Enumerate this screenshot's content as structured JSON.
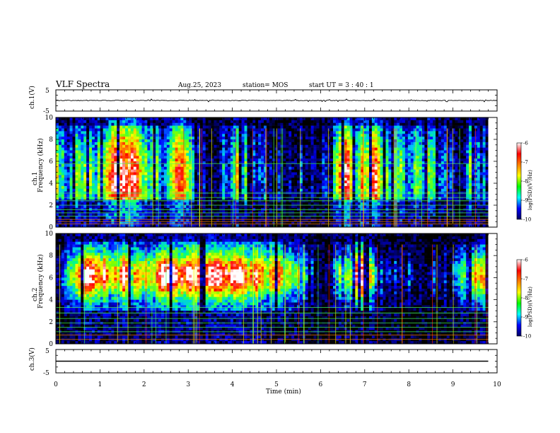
{
  "header": {
    "title": "VLF Spectra",
    "date": "Aug.25, 2023",
    "station": "station= MOS",
    "start": "start  UT =   3 : 40 : 1"
  },
  "chart_data": [
    {
      "type": "line",
      "panel": "ch1-waveform",
      "ylabel": "ch.1(V)",
      "ylim": [
        -5,
        5
      ],
      "y_ticks": [
        "5",
        "-5"
      ],
      "x_range": [
        0,
        10
      ],
      "level": 0,
      "description_of_series": "near-zero waveform with small spikes"
    },
    {
      "type": "heatmap",
      "panel": "ch1-spectrogram",
      "ylabel": "ch.1\nFrequency (kHz)",
      "ylabel_line1": "ch.1",
      "ylabel_line2": "Frequency (kHz)",
      "ylim": [
        0,
        10
      ],
      "y_ticks": [
        "0",
        "2",
        "4",
        "6",
        "8",
        "10"
      ],
      "x_range": [
        0,
        9.8
      ],
      "colorbar": {
        "label": "log(PSD)(V²/Hz)",
        "range": [
          -10,
          -6
        ],
        "ticks": [
          "-6",
          "-7",
          "-8",
          "-9",
          "-10"
        ]
      },
      "line_frequencies_khz": [
        0.3,
        0.5,
        0.7,
        1.0,
        1.3,
        1.6,
        2.0,
        2.4,
        2.7,
        3.1,
        5.8
      ]
    },
    {
      "type": "heatmap",
      "panel": "ch2-spectrogram",
      "ylabel": "ch.2\nFrequency (kHz)",
      "ylabel_line1": "ch.2",
      "ylabel_line2": "Frequency (kHz)",
      "ylim": [
        0,
        10
      ],
      "y_ticks": [
        "0",
        "2",
        "4",
        "6",
        "8",
        "10"
      ],
      "x_range": [
        0,
        9.8
      ],
      "colorbar": {
        "label": "log(PSD)(V²/Hz)",
        "range": [
          -10,
          -6
        ],
        "ticks": [
          "-6",
          "-7",
          "-8",
          "-9",
          "-10"
        ]
      },
      "line_frequencies_khz": [
        0.4,
        0.8,
        1.1,
        1.5,
        1.9,
        2.3,
        2.8,
        3.3
      ]
    },
    {
      "type": "line",
      "panel": "ch3-waveform",
      "ylabel": "ch.3(V)",
      "ylim": [
        -5,
        5
      ],
      "y_ticks": [
        "5",
        "-5"
      ],
      "x_range": [
        0,
        9.8
      ],
      "level": 0
    }
  ],
  "x_axis": {
    "label": "Time  (min)",
    "ticks": [
      "0",
      "1",
      "2",
      "3",
      "4",
      "5",
      "6",
      "7",
      "8",
      "9",
      "10"
    ],
    "range": [
      0,
      10
    ]
  },
  "colors": {
    "spectrogram_stops": [
      "#000000",
      "#000080",
      "#0000ff",
      "#00c0ff",
      "#00ff80",
      "#80ff00",
      "#ffff00",
      "#ff8000",
      "#ff0000",
      "#ffffff"
    ],
    "colorbar_stops": [
      "#ffffff",
      "#ff0000",
      "#ff8000",
      "#ffff00",
      "#00ff00",
      "#00ffff",
      "#0000ff",
      "#000060"
    ]
  }
}
